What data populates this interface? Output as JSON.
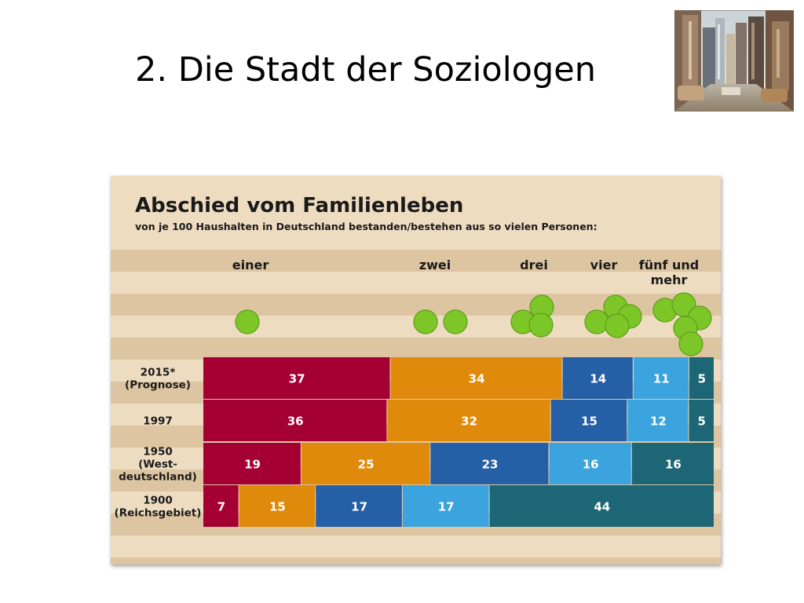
{
  "slide": {
    "title": "2. Die Stadt der Soziologen"
  },
  "chart_data": {
    "type": "bar",
    "stacked": true,
    "orientation": "horizontal",
    "normalized_to": 100,
    "title": "Abschied vom Familienleben",
    "subtitle": "von je 100 Haushalten in Deutschland bestanden/bestehen aus so vielen Personen:",
    "categories": [
      {
        "name": "2015* (Prognose)",
        "label_lines": [
          "2015*",
          "(Prognose)"
        ]
      },
      {
        "name": "1997",
        "label_lines": [
          "1997"
        ]
      },
      {
        "name": "1950 (West-deutschland)",
        "label_lines": [
          "1950",
          "(West-",
          "deutschland)"
        ]
      },
      {
        "name": "1900 (Reichsgebiet)",
        "label_lines": [
          "1900",
          "(Reichsgebiet)"
        ]
      }
    ],
    "series": [
      {
        "name": "einer",
        "label_lines": [
          "einer"
        ],
        "persons": 1,
        "color": "#a50034",
        "values": [
          37,
          36,
          19,
          7
        ]
      },
      {
        "name": "zwei",
        "label_lines": [
          "zwei"
        ],
        "persons": 2,
        "color": "#e08a0b",
        "values": [
          34,
          32,
          25,
          15
        ]
      },
      {
        "name": "drei",
        "label_lines": [
          "drei"
        ],
        "persons": 3,
        "color": "#255fa6",
        "values": [
          14,
          15,
          23,
          17
        ]
      },
      {
        "name": "vier",
        "label_lines": [
          "vier"
        ],
        "persons": 4,
        "color": "#3ba3dd",
        "values": [
          11,
          12,
          16,
          17
        ]
      },
      {
        "name": "fünf und mehr",
        "label_lines": [
          "fünf und",
          "mehr"
        ],
        "persons": 5,
        "color": "#1d6675",
        "values": [
          5,
          5,
          16,
          44
        ]
      }
    ],
    "legend_placement": "top",
    "person_icon_color": "#7dc628",
    "background_stripe_colors": [
      "#eddcc0",
      "#ddc5a2"
    ]
  }
}
